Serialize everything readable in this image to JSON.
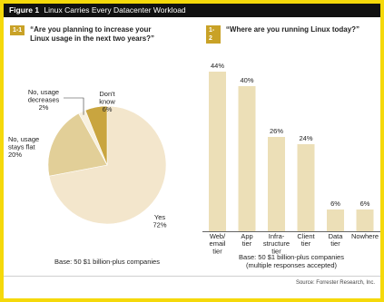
{
  "figure": {
    "label": "Figure 1",
    "title": "Linux Carries Every Datacenter Workload",
    "source": "Source: Forrester Research, Inc."
  },
  "left_panel": {
    "badge": "1-1",
    "question": "“Are you planning to increase your\nLinux usage in the next two years?”",
    "base": "Base: 50 $1 billion-plus companies"
  },
  "right_panel": {
    "badge": "1-2",
    "question": "“Where are you running Linux today?”",
    "base": "Base: 50 $1 billion-plus companies\n(multiple responses accepted)"
  },
  "chart_data": [
    {
      "type": "pie",
      "slices": [
        {
          "label": "Yes",
          "value": 72,
          "value_label": "72%",
          "color": "#f3e6cc"
        },
        {
          "label": "No, usage stays flat",
          "value": 20,
          "value_label": "20%",
          "color": "#e2cf98"
        },
        {
          "label": "No, usage decreases",
          "value": 2,
          "value_label": "2%",
          "color": "#f8f1df"
        },
        {
          "label": "Don't know",
          "value": 6,
          "value_label": "6%",
          "color": "#c9a53f"
        }
      ]
    },
    {
      "type": "bar",
      "categories": [
        "Web/ email tier",
        "App tier",
        "Infra- structure tier",
        "Client tier",
        "Data tier",
        "Nowhere"
      ],
      "category_lines": [
        [
          "Web/",
          "email",
          "tier"
        ],
        [
          "App",
          "tier"
        ],
        [
          "Infra-",
          "structure",
          "tier"
        ],
        [
          "Client",
          "tier"
        ],
        [
          "Data",
          "tier"
        ],
        [
          "Nowhere"
        ]
      ],
      "values": [
        44,
        40,
        26,
        24,
        6,
        6
      ],
      "value_labels": [
        "44%",
        "40%",
        "26%",
        "24%",
        "6%",
        "6%"
      ],
      "ylim": [
        0,
        50
      ],
      "bar_color": "#ecdfb7",
      "grid": false
    }
  ]
}
